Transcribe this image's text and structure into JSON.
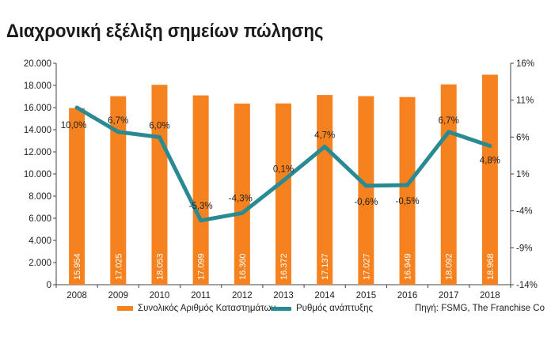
{
  "title": "Διαχρονική εξέλιξη σημείων πώλησης",
  "colors": {
    "bar": "#f5821f",
    "line": "#2a8a93",
    "axis": "#444444"
  },
  "legend": {
    "bars": "Συνολικός Αριθμός Καταστημάτων",
    "line": "Ρυθμός ανάπτυξης"
  },
  "source": "Πηγή: FSMG, The Franchise Co",
  "chart_data": {
    "type": "bar+line",
    "categories": [
      "2008",
      "2009",
      "2010",
      "2011",
      "2012",
      "2013",
      "2014",
      "2015",
      "2016",
      "2017",
      "2018"
    ],
    "series": [
      {
        "name": "Συνολικός Αριθμός Καταστημάτων",
        "type": "bar",
        "axis": "left",
        "values": [
          15954,
          17025,
          18053,
          17099,
          16360,
          16372,
          17137,
          17027,
          16949,
          18092,
          18968
        ],
        "labels": [
          "15.954",
          "17.025",
          "18.053",
          "17.099",
          "16.360",
          "16.372",
          "17.137",
          "17.027",
          "16.949",
          "18.092",
          "18.968"
        ]
      },
      {
        "name": "Ρυθμός ανάπτυξης",
        "type": "line",
        "axis": "right",
        "values": [
          10.0,
          6.7,
          6.0,
          -5.3,
          -4.3,
          0.1,
          4.7,
          -0.6,
          -0.5,
          6.7,
          4.8
        ],
        "labels": [
          "10,0%",
          "6,7%",
          "6,0%",
          "-5,3%",
          "-4,3%",
          "0,1%",
          "4,7%",
          "-0,6%",
          "-0,5%",
          "6,7%",
          "4,8%"
        ]
      }
    ],
    "left_axis": {
      "ylim": [
        0,
        20000
      ],
      "ticks": [
        0,
        2000,
        4000,
        6000,
        8000,
        10000,
        12000,
        14000,
        16000,
        18000,
        20000
      ],
      "tick_labels": [
        "0",
        "2.000",
        "4.000",
        "6.000",
        "8.000",
        "10.000",
        "12.000",
        "14.000",
        "16.000",
        "18.000",
        "20.000"
      ]
    },
    "right_axis": {
      "ylim": [
        -14,
        16
      ],
      "ticks": [
        -14,
        -9,
        -4,
        1,
        6,
        11,
        16
      ],
      "tick_labels": [
        "-14%",
        "-9%",
        "-4%",
        "1%",
        "6%",
        "11%",
        "16%"
      ]
    },
    "grid": false
  }
}
